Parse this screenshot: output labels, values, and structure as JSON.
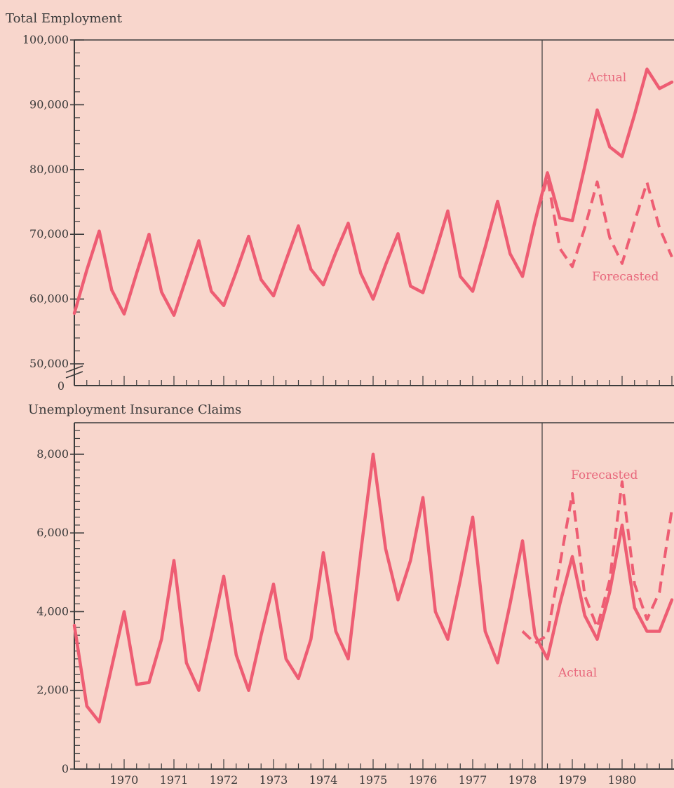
{
  "colors": {
    "background": "#f8d6cc",
    "series": "#ee5d73",
    "axis": "#3c3c3c"
  },
  "chart_data": [
    {
      "type": "line",
      "title": "Total Employment",
      "x_start": "1969 Q1",
      "points_per_year": 4,
      "y_ticks": [
        "50,000",
        "60,000",
        "70,000",
        "80,000",
        "90,000",
        "100,000"
      ],
      "y_tick_values": [
        50000,
        60000,
        70000,
        80000,
        90000,
        100000
      ],
      "y_zero_label": "0",
      "y_axis_break": true,
      "ylim": [
        50000,
        100000
      ],
      "series": [
        {
          "name": "Actual",
          "line_style": "solid",
          "values": [
            57800,
            64500,
            70500,
            61400,
            57700,
            64000,
            70000,
            61100,
            57500,
            63300,
            69000,
            61200,
            59000,
            64200,
            69700,
            63000,
            60500,
            66000,
            71300,
            64600,
            62200,
            67200,
            71700,
            64000,
            60000,
            65300,
            70100,
            62000,
            61000,
            67200,
            73600,
            63500,
            61200,
            68000,
            75100,
            67000,
            63500,
            72000,
            79500,
            72500,
            72100,
            80500,
            89200,
            83500,
            82000,
            88500,
            95500,
            92500,
            93500
          ]
        },
        {
          "name": "Forecasted",
          "line_style": "dashed",
          "values": [
            null,
            null,
            null,
            null,
            null,
            null,
            null,
            null,
            null,
            null,
            null,
            null,
            null,
            null,
            null,
            null,
            null,
            null,
            null,
            null,
            null,
            null,
            null,
            null,
            null,
            null,
            null,
            null,
            null,
            null,
            null,
            null,
            null,
            null,
            null,
            null,
            63500,
            72000,
            78800,
            67800,
            65000,
            71000,
            78100,
            69500,
            65500,
            72000,
            78000,
            71000,
            66500
          ]
        }
      ]
    },
    {
      "type": "line",
      "title": "Unemployment Insurance Claims",
      "x_start": "1969 Q1",
      "points_per_year": 4,
      "y_ticks": [
        "0",
        "2,000",
        "4,000",
        "6,000",
        "8,000"
      ],
      "y_tick_values": [
        0,
        2000,
        4000,
        6000,
        8000
      ],
      "ylim": [
        0,
        8800
      ],
      "x_tick_labels": [
        "1970",
        "1971",
        "1972",
        "1973",
        "1974",
        "1975",
        "1976",
        "1977",
        "1978",
        "1979",
        "1980"
      ],
      "series": [
        {
          "name": "Actual",
          "line_style": "solid",
          "values": [
            3650,
            1600,
            1200,
            2600,
            4000,
            2150,
            2200,
            3300,
            5300,
            2700,
            2000,
            3400,
            4900,
            2900,
            2000,
            3400,
            4700,
            2800,
            2300,
            3300,
            5500,
            3500,
            2800,
            5500,
            8000,
            5600,
            4300,
            5300,
            6900,
            4000,
            3300,
            4800,
            6400,
            3500,
            2700,
            4200,
            5800,
            3400,
            2800,
            4200,
            5400,
            3900,
            3300,
            4500,
            6200,
            4100,
            3500,
            3500,
            4300
          ]
        },
        {
          "name": "Forecasted",
          "line_style": "dashed",
          "values": [
            null,
            null,
            null,
            null,
            null,
            null,
            null,
            null,
            null,
            null,
            null,
            null,
            null,
            null,
            null,
            null,
            null,
            null,
            null,
            null,
            null,
            null,
            null,
            null,
            null,
            null,
            null,
            null,
            null,
            null,
            null,
            null,
            null,
            null,
            null,
            null,
            3500,
            3200,
            3400,
            5200,
            7000,
            4400,
            3600,
            4800,
            7300,
            4700,
            3800,
            4500,
            6600
          ]
        }
      ]
    }
  ]
}
